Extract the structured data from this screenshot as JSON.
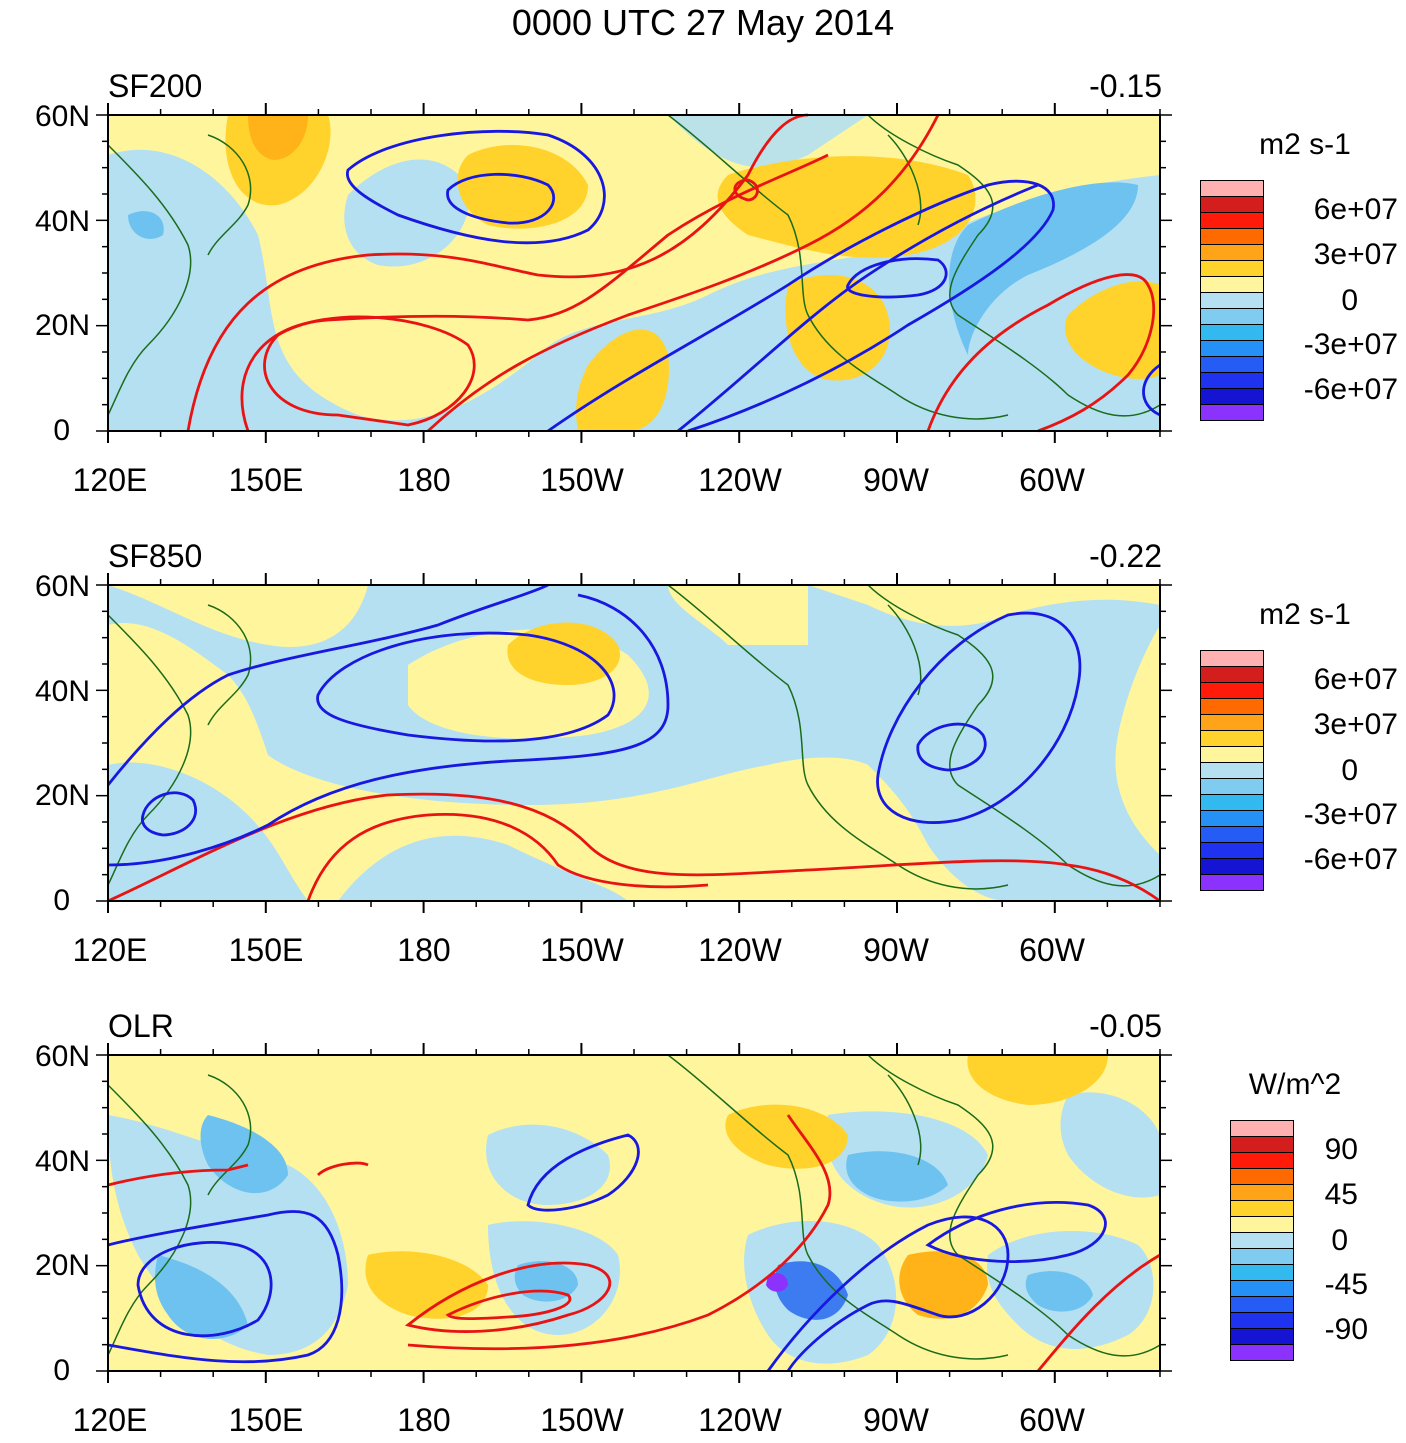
{
  "title": "0000 UTC 27 May 2014",
  "lat_labels": [
    "60N",
    "40N",
    "20N",
    "0"
  ],
  "lon_labels": [
    "120E",
    "150E",
    "180",
    "150W",
    "120W",
    "90W",
    "60W"
  ],
  "colors": {
    "land_outline": "#1a6b1a",
    "positive_contour": "#e81414",
    "negative_contour": "#1818e0",
    "fill_pos_1": "#fff59c",
    "fill_pos_2": "#ffd22c",
    "fill_pos_3": "#ffb319",
    "fill_neg_1": "#b4e0f2",
    "fill_neg_2": "#6ec2f0",
    "fill_neg_3": "#3c7cf0"
  },
  "panels": [
    {
      "label": "SF200",
      "correlation": "-0.15",
      "colorbar": {
        "units": "m2 s-1",
        "tick_labels": [
          "6e+07",
          "3e+07",
          "0",
          "-3e+07",
          "-6e+07"
        ],
        "swatches": [
          "#ffb0b0",
          "#d41e1e",
          "#ff1a0a",
          "#ff6a00",
          "#ffa319",
          "#ffd22c",
          "#fff59c",
          "#b4e0f2",
          "#80ccf0",
          "#32baf0",
          "#2590f5",
          "#255cf5",
          "#1e32f0",
          "#1414d2",
          "#8c32ff"
        ]
      }
    },
    {
      "label": "SF850",
      "correlation": "-0.22",
      "colorbar": {
        "units": "m2 s-1",
        "tick_labels": [
          "6e+07",
          "3e+07",
          "0",
          "-3e+07",
          "-6e+07"
        ],
        "swatches": [
          "#ffb0b0",
          "#d41e1e",
          "#ff1a0a",
          "#ff6a00",
          "#ffa319",
          "#ffd22c",
          "#fff59c",
          "#b4e0f2",
          "#80ccf0",
          "#32baf0",
          "#2590f5",
          "#255cf5",
          "#1e32f0",
          "#1414d2",
          "#8c32ff"
        ]
      }
    },
    {
      "label": "OLR",
      "correlation": "-0.05",
      "colorbar": {
        "units": "W/m^2",
        "tick_labels": [
          "90",
          "45",
          "0",
          "-45",
          "-90"
        ],
        "swatches": [
          "#ffb0b0",
          "#d41e1e",
          "#ff1a0a",
          "#ff6a00",
          "#ffa319",
          "#ffd22c",
          "#fff59c",
          "#b4e0f2",
          "#80ccf0",
          "#32baf0",
          "#2590f5",
          "#255cf5",
          "#1e32f0",
          "#1414d2",
          "#8c32ff"
        ]
      }
    }
  ]
}
